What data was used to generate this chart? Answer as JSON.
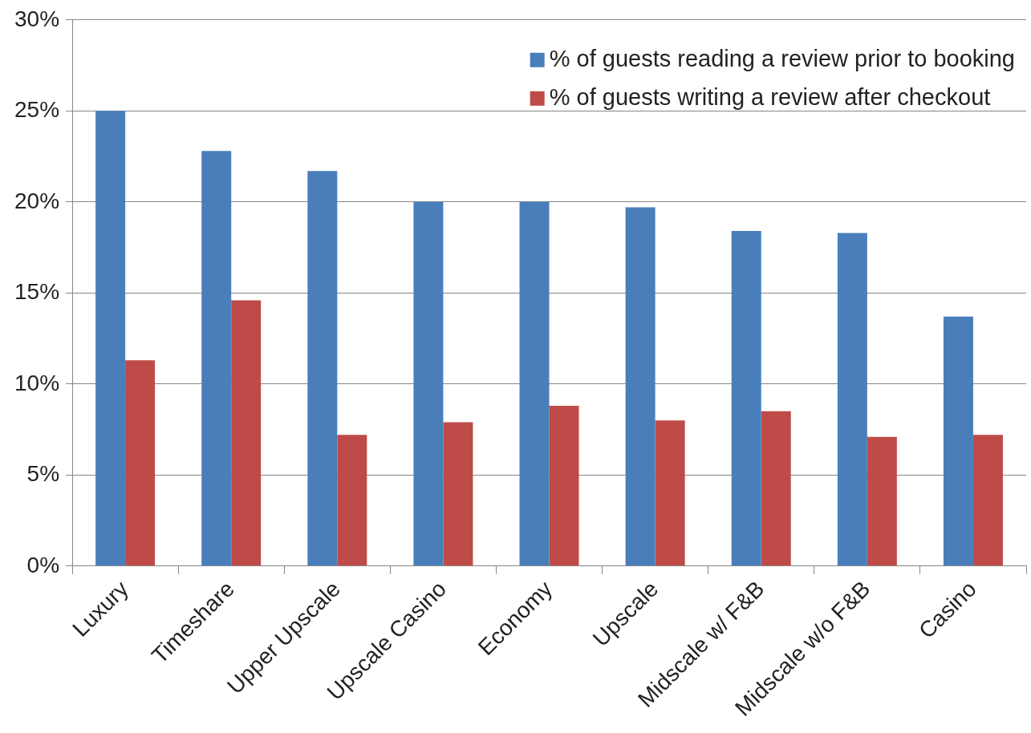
{
  "chart_data": {
    "type": "bar",
    "categories": [
      "Luxury",
      "Timeshare",
      "Upper Upscale",
      "Upscale Casino",
      "Economy",
      "Upscale",
      "Midscale w/ F&B",
      "Midscale w/o F&B",
      "Casino"
    ],
    "series": [
      {
        "name": "% of guests reading a review prior to booking",
        "color": "#4a7ebb",
        "values": [
          25,
          22.8,
          21.7,
          20,
          20,
          19.7,
          18.4,
          18.3,
          13.7
        ]
      },
      {
        "name": "% of guests writing a review after checkout",
        "color": "#be4b48",
        "values": [
          11.3,
          14.6,
          7.2,
          7.9,
          8.8,
          8.0,
          8.5,
          7.1,
          7.2
        ]
      }
    ],
    "ylim": [
      0,
      30
    ],
    "yticks": [
      {
        "value": 0,
        "label": "0%"
      },
      {
        "value": 5,
        "label": "5%"
      },
      {
        "value": 10,
        "label": "10%"
      },
      {
        "value": 15,
        "label": "15%"
      },
      {
        "value": 20,
        "label": "20%"
      },
      {
        "value": 25,
        "label": "25%"
      },
      {
        "value": 30,
        "label": "30%"
      }
    ],
    "grid": "y",
    "legend": "top right"
  }
}
